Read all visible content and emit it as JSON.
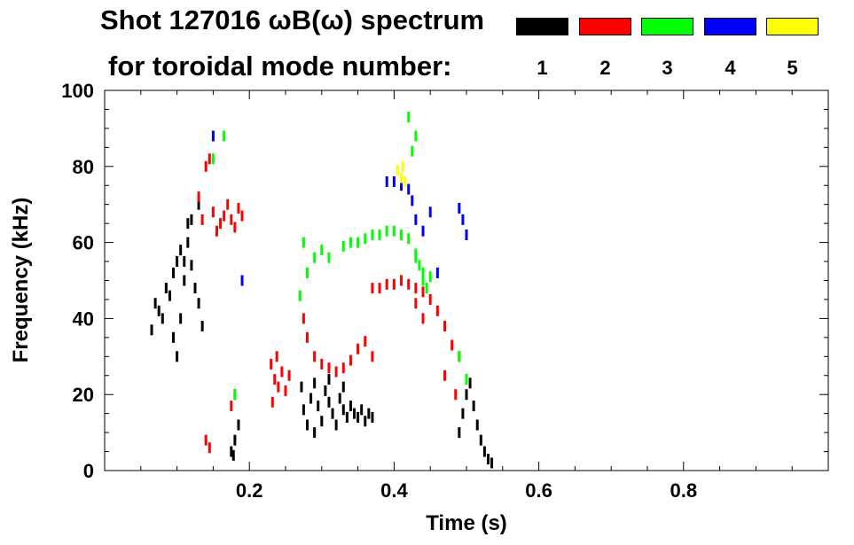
{
  "title_line1": "Shot 127016 ωB(ω) spectrum",
  "title_line2": "for toroidal mode number:",
  "legend": [
    {
      "label": "1",
      "color": "#000000"
    },
    {
      "label": "2",
      "color": "#ff0000"
    },
    {
      "label": "3",
      "color": "#00ff00"
    },
    {
      "label": "4",
      "color": "#0000ff"
    },
    {
      "label": "5",
      "color": "#ffff00"
    }
  ],
  "chart_data": {
    "type": "heatmap",
    "title": "Shot 127016 ωB(ω) spectrum",
    "xlabel": "Time (s)",
    "ylabel": "Frequency (kHz)",
    "xlim": [
      0.0,
      1.0
    ],
    "ylim": [
      0,
      100
    ],
    "x_ticks": [
      0.2,
      0.4,
      0.6,
      0.8
    ],
    "x_tick_labels": [
      "0.2",
      "0.4",
      "0.6",
      "0.8"
    ],
    "y_ticks": [
      0,
      20,
      40,
      60,
      80,
      100
    ],
    "y_tick_labels": [
      "0",
      "20",
      "40",
      "60",
      "80",
      "100"
    ],
    "series": [
      {
        "name": "1",
        "color": "#000000",
        "points": [
          [
            0.065,
            37
          ],
          [
            0.07,
            44
          ],
          [
            0.075,
            42
          ],
          [
            0.08,
            40
          ],
          [
            0.085,
            48
          ],
          [
            0.09,
            46
          ],
          [
            0.095,
            52
          ],
          [
            0.1,
            55
          ],
          [
            0.105,
            58
          ],
          [
            0.11,
            55
          ],
          [
            0.115,
            60
          ],
          [
            0.12,
            54
          ],
          [
            0.125,
            48
          ],
          [
            0.13,
            44
          ],
          [
            0.135,
            38
          ],
          [
            0.095,
            35
          ],
          [
            0.1,
            30
          ],
          [
            0.105,
            40
          ],
          [
            0.11,
            50
          ],
          [
            0.115,
            65
          ],
          [
            0.12,
            66
          ],
          [
            0.13,
            70
          ],
          [
            0.175,
            5
          ],
          [
            0.18,
            8
          ],
          [
            0.185,
            12
          ],
          [
            0.178,
            4
          ],
          [
            0.272,
            22
          ],
          [
            0.275,
            16
          ],
          [
            0.28,
            12
          ],
          [
            0.285,
            19
          ],
          [
            0.29,
            23
          ],
          [
            0.295,
            17
          ],
          [
            0.3,
            13
          ],
          [
            0.305,
            21
          ],
          [
            0.31,
            18
          ],
          [
            0.315,
            15
          ],
          [
            0.32,
            12
          ],
          [
            0.325,
            19
          ],
          [
            0.33,
            16
          ],
          [
            0.335,
            14
          ],
          [
            0.34,
            17
          ],
          [
            0.345,
            15
          ],
          [
            0.35,
            14
          ],
          [
            0.355,
            16
          ],
          [
            0.36,
            13
          ],
          [
            0.365,
            15
          ],
          [
            0.37,
            14
          ],
          [
            0.29,
            10
          ],
          [
            0.31,
            24
          ],
          [
            0.33,
            22
          ],
          [
            0.49,
            10
          ],
          [
            0.495,
            15
          ],
          [
            0.5,
            20
          ],
          [
            0.505,
            23
          ],
          [
            0.51,
            17
          ],
          [
            0.515,
            12
          ],
          [
            0.52,
            8
          ],
          [
            0.525,
            5
          ],
          [
            0.53,
            3
          ],
          [
            0.535,
            2
          ]
        ]
      },
      {
        "name": "2",
        "color": "#ff0000",
        "points": [
          [
            0.14,
            80
          ],
          [
            0.145,
            82
          ],
          [
            0.15,
            68
          ],
          [
            0.155,
            63
          ],
          [
            0.16,
            65
          ],
          [
            0.165,
            67
          ],
          [
            0.17,
            70
          ],
          [
            0.175,
            66
          ],
          [
            0.18,
            64
          ],
          [
            0.185,
            69
          ],
          [
            0.19,
            67
          ],
          [
            0.13,
            72
          ],
          [
            0.135,
            66
          ],
          [
            0.175,
            17
          ],
          [
            0.18,
            20
          ],
          [
            0.23,
            28
          ],
          [
            0.235,
            24
          ],
          [
            0.24,
            22
          ],
          [
            0.245,
            26
          ],
          [
            0.25,
            21
          ],
          [
            0.255,
            25
          ],
          [
            0.238,
            30
          ],
          [
            0.232,
            18
          ],
          [
            0.275,
            40
          ],
          [
            0.28,
            35
          ],
          [
            0.29,
            30
          ],
          [
            0.3,
            28
          ],
          [
            0.31,
            27
          ],
          [
            0.32,
            26
          ],
          [
            0.33,
            27
          ],
          [
            0.34,
            29
          ],
          [
            0.35,
            32
          ],
          [
            0.36,
            34
          ],
          [
            0.37,
            30
          ],
          [
            0.37,
            48
          ],
          [
            0.38,
            48
          ],
          [
            0.39,
            49
          ],
          [
            0.4,
            49
          ],
          [
            0.41,
            50
          ],
          [
            0.42,
            49
          ],
          [
            0.43,
            48
          ],
          [
            0.44,
            47
          ],
          [
            0.45,
            45
          ],
          [
            0.46,
            42
          ],
          [
            0.47,
            38
          ],
          [
            0.48,
            33
          ],
          [
            0.49,
            30
          ],
          [
            0.47,
            25
          ],
          [
            0.485,
            20
          ],
          [
            0.14,
            8
          ],
          [
            0.145,
            6
          ],
          [
            0.43,
            44
          ],
          [
            0.44,
            40
          ]
        ]
      },
      {
        "name": "3",
        "color": "#00ff00",
        "points": [
          [
            0.15,
            82
          ],
          [
            0.165,
            88
          ],
          [
            0.27,
            46
          ],
          [
            0.28,
            52
          ],
          [
            0.29,
            56
          ],
          [
            0.3,
            58
          ],
          [
            0.31,
            56
          ],
          [
            0.33,
            59
          ],
          [
            0.34,
            60
          ],
          [
            0.35,
            60
          ],
          [
            0.36,
            61
          ],
          [
            0.37,
            62
          ],
          [
            0.38,
            62
          ],
          [
            0.39,
            63
          ],
          [
            0.4,
            63
          ],
          [
            0.41,
            62
          ],
          [
            0.42,
            61
          ],
          [
            0.43,
            56
          ],
          [
            0.435,
            54
          ],
          [
            0.44,
            52
          ],
          [
            0.445,
            48
          ],
          [
            0.45,
            51
          ],
          [
            0.43,
            57
          ],
          [
            0.44,
            50
          ],
          [
            0.42,
            93
          ],
          [
            0.43,
            88
          ],
          [
            0.425,
            84
          ],
          [
            0.49,
            30
          ],
          [
            0.5,
            24
          ],
          [
            0.18,
            20
          ],
          [
            0.275,
            60
          ]
        ]
      },
      {
        "name": "4",
        "color": "#0000ff",
        "points": [
          [
            0.15,
            88
          ],
          [
            0.19,
            50
          ],
          [
            0.39,
            76
          ],
          [
            0.4,
            76
          ],
          [
            0.41,
            75
          ],
          [
            0.42,
            74
          ],
          [
            0.425,
            71
          ],
          [
            0.43,
            66
          ],
          [
            0.44,
            63
          ],
          [
            0.45,
            68
          ],
          [
            0.49,
            69
          ],
          [
            0.495,
            66
          ],
          [
            0.5,
            62
          ],
          [
            0.46,
            52
          ]
        ]
      },
      {
        "name": "5",
        "color": "#ffff00",
        "points": [
          [
            0.405,
            79
          ],
          [
            0.41,
            77
          ],
          [
            0.415,
            76
          ],
          [
            0.412,
            80
          ]
        ]
      }
    ],
    "legend": [
      "1",
      "2",
      "3",
      "4",
      "5"
    ],
    "legend_position": "top-right",
    "grid": false
  }
}
